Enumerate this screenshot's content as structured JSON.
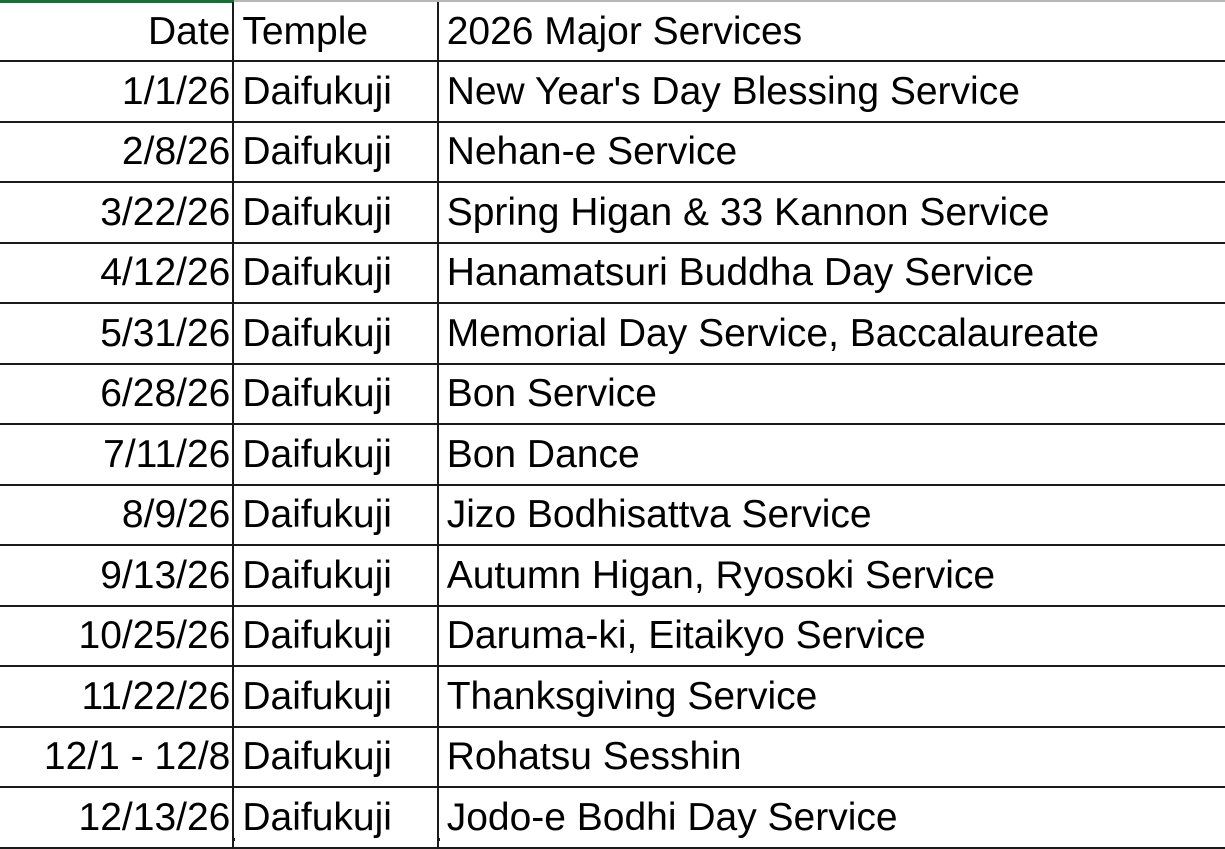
{
  "columns": [
    "Date",
    "Temple",
    "2026 Major Services"
  ],
  "rows": [
    {
      "date": "1/1/26",
      "temple": "Daifukuji",
      "service": "New Year's Day Blessing Service"
    },
    {
      "date": "2/8/26",
      "temple": "Daifukuji",
      "service": "Nehan-e Service"
    },
    {
      "date": "3/22/26",
      "temple": "Daifukuji",
      "service": "Spring Higan & 33 Kannon Service"
    },
    {
      "date": "4/12/26",
      "temple": "Daifukuji",
      "service": "Hanamatsuri Buddha Day Service"
    },
    {
      "date": "5/31/26",
      "temple": "Daifukuji",
      "service": "Memorial Day Service, Baccalaureate"
    },
    {
      "date": "6/28/26",
      "temple": "Daifukuji",
      "service": "Bon Service"
    },
    {
      "date": "7/11/26",
      "temple": "Daifukuji",
      "service": "Bon Dance"
    },
    {
      "date": "8/9/26",
      "temple": "Daifukuji",
      "service": "Jizo Bodhisattva Service"
    },
    {
      "date": "9/13/26",
      "temple": "Daifukuji",
      "service": "Autumn Higan, Ryosoki Service"
    },
    {
      "date": "10/25/26",
      "temple": "Daifukuji",
      "service": "Daruma-ki, Eitaikyo Service"
    },
    {
      "date": "11/22/26",
      "temple": "Daifukuji",
      "service": "Thanksgiving Service"
    },
    {
      "date": "12/1 - 12/8",
      "temple": "Daifukuji",
      "service": "Rohatsu Sesshin"
    },
    {
      "date": "12/13/26",
      "temple": "Daifukuji",
      "service": "Jodo-e Bodhi Day Service"
    }
  ],
  "colors": {
    "selection_accent": "#1e6b3a",
    "grid": "#1a1a1a"
  }
}
